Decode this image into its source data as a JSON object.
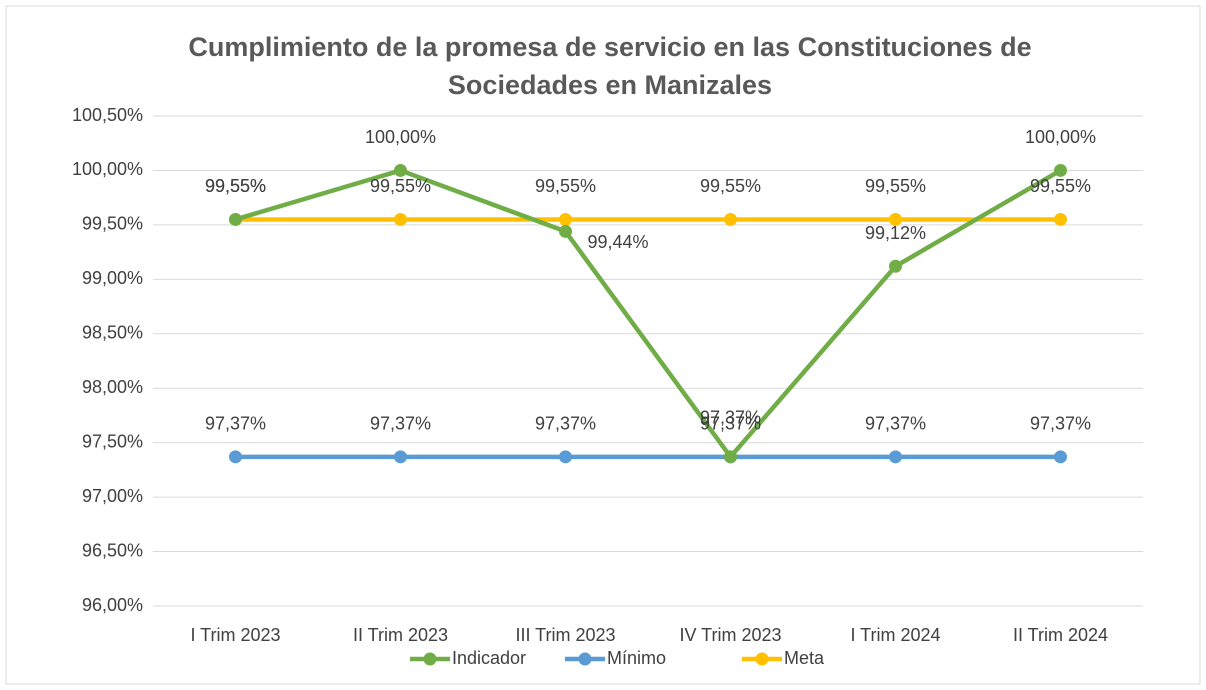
{
  "chart_data": {
    "type": "line",
    "title": "Cumplimiento de la promesa de servicio en las Constituciones de Sociedades en Manizales",
    "categories": [
      "I Trim 2023",
      "II Trim 2023",
      "III Trim 2023",
      "IV Trim 2023",
      "I Trim 2024",
      "II Trim 2024"
    ],
    "series": [
      {
        "name": "Indicador",
        "color": "#70ad47",
        "values": [
          99.55,
          100,
          99.44,
          97.37,
          99.12,
          100
        ],
        "value_labels": [
          "99,55%",
          "100,00%",
          "99,44%",
          "97,37%",
          "99,12%",
          "100,00%"
        ]
      },
      {
        "name": "Mínimo",
        "color": "#5b9bd5",
        "values": [
          97.37,
          97.37,
          97.37,
          97.37,
          97.37,
          97.37
        ],
        "value_labels": [
          "97,37%",
          "97,37%",
          "97,37%",
          "97,37%",
          "97,37%",
          "97,37%"
        ]
      },
      {
        "name": "Meta",
        "color": "#ffc000",
        "values": [
          99.55,
          99.55,
          99.55,
          99.55,
          99.55,
          99.55
        ],
        "value_labels": [
          "99,55%",
          "99,55%",
          "99,55%",
          "99,55%",
          "99,55%",
          "99,55%"
        ]
      }
    ],
    "ylim": [
      96,
      100.5
    ],
    "yticks": [
      {
        "value": 96,
        "label": "96,00%"
      },
      {
        "value": 96.5,
        "label": "96,50%"
      },
      {
        "value": 97,
        "label": "97,00%"
      },
      {
        "value": 97.5,
        "label": "97,50%"
      },
      {
        "value": 98,
        "label": "98,00%"
      },
      {
        "value": 98.5,
        "label": "98,50%"
      },
      {
        "value": 99,
        "label": "99,00%"
      },
      {
        "value": 99.5,
        "label": "99,50%"
      },
      {
        "value": 100,
        "label": "100,00%"
      },
      {
        "value": 100.5,
        "label": "100,50%"
      }
    ],
    "grid": true,
    "legend": "bottom"
  }
}
